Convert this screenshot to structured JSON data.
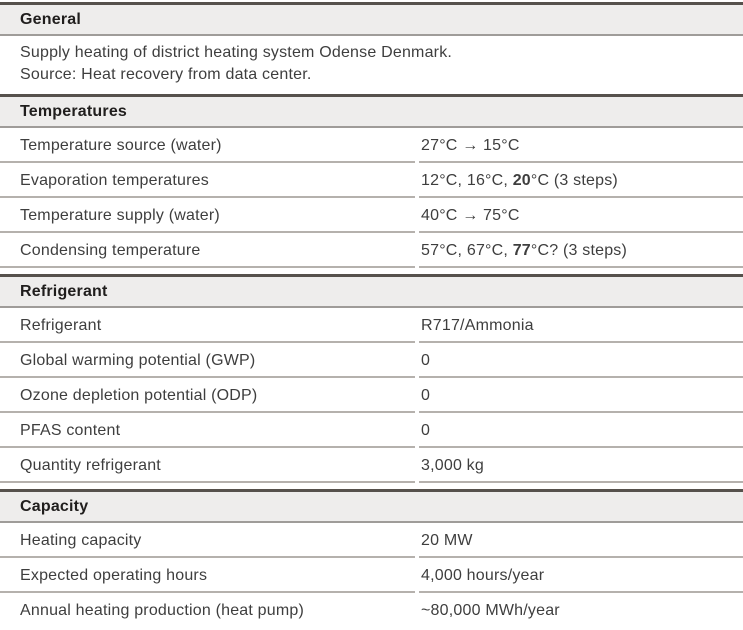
{
  "colors": {
    "header-bg": "#eeedec",
    "border-dark": "#56514c",
    "border-mid": "#9f9c99",
    "border-light": "#b5b1ad",
    "header-text": "#201e1d",
    "text": "#3e3e3e"
  },
  "sections": [
    {
      "title": "General",
      "description": [
        "Supply heating of district heating system Odense Denmark.",
        "Source: Heat recovery from data center."
      ],
      "rows": []
    },
    {
      "title": "Temperatures",
      "rows": [
        {
          "label": "Temperature source (water)",
          "value": [
            {
              "text": "27°C → 15°C",
              "bold": false
            }
          ]
        },
        {
          "label": "Evaporation temperatures",
          "value": [
            {
              "text": "12°C, 16°C, ",
              "bold": false
            },
            {
              "text": "20",
              "bold": true
            },
            {
              "text": "°C (3 steps)",
              "bold": false
            }
          ]
        },
        {
          "label": "Temperature supply (water)",
          "value": [
            {
              "text": "40°C → 75°C",
              "bold": false
            }
          ]
        },
        {
          "label": "Condensing temperature",
          "value": [
            {
              "text": "57°C, 67°C, ",
              "bold": false
            },
            {
              "text": "77",
              "bold": true
            },
            {
              "text": "°C? (3 steps)",
              "bold": false
            }
          ]
        }
      ]
    },
    {
      "title": "Refrigerant",
      "rows": [
        {
          "label": "Refrigerant",
          "value": [
            {
              "text": "R717/Ammonia",
              "bold": false
            }
          ]
        },
        {
          "label": "Global warming potential (GWP)",
          "value": [
            {
              "text": "0",
              "bold": false
            }
          ]
        },
        {
          "label": "Ozone depletion potential (ODP)",
          "value": [
            {
              "text": "0",
              "bold": false
            }
          ]
        },
        {
          "label": "PFAS content",
          "value": [
            {
              "text": "0",
              "bold": false
            }
          ]
        },
        {
          "label": "Quantity refrigerant",
          "value": [
            {
              "text": "3,000 kg",
              "bold": false
            }
          ]
        }
      ]
    },
    {
      "title": "Capacity",
      "rows": [
        {
          "label": "Heating capacity",
          "value": [
            {
              "text": "20 MW",
              "bold": false
            }
          ]
        },
        {
          "label": "Expected operating hours",
          "value": [
            {
              "text": "4,000 hours/year",
              "bold": false
            }
          ]
        },
        {
          "label": "Annual heating production (heat pump)",
          "value": [
            {
              "text": "~80,000 MWh/year",
              "bold": false
            }
          ]
        }
      ]
    }
  ]
}
